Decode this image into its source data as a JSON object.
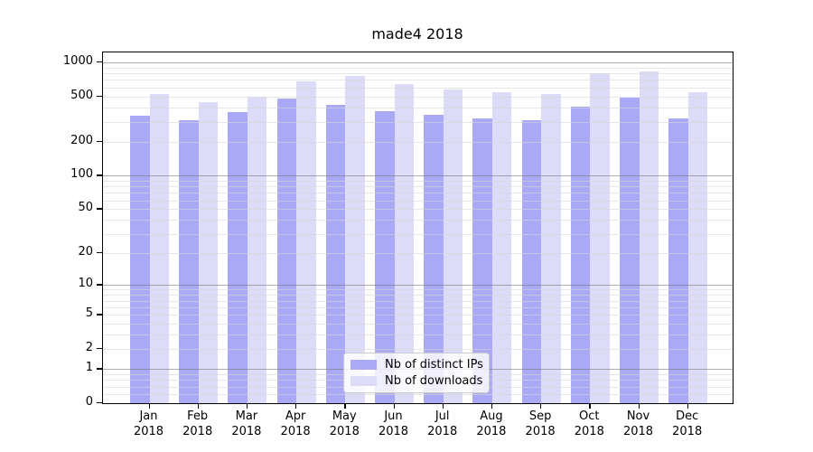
{
  "title": "made4 2018",
  "colors": {
    "distinct_ips": "#a9a9f5",
    "downloads": "#dcdcf8",
    "grid_major": "rgba(120,120,120,0.60)",
    "grid_minor": "rgba(215,215,215,0.60)",
    "axis": "#000000",
    "background": "#ffffff"
  },
  "legend": {
    "items": [
      {
        "label": "Nb of distinct IPs",
        "color_key": "distinct_ips"
      },
      {
        "label": "Nb of downloads",
        "color_key": "downloads"
      }
    ]
  },
  "chart_data": {
    "type": "bar",
    "title": "made4 2018",
    "categories": [
      "Jan 2018",
      "Feb 2018",
      "Mar 2018",
      "Apr 2018",
      "May 2018",
      "Jun 2018",
      "Jul 2018",
      "Aug 2018",
      "Sep 2018",
      "Oct 2018",
      "Nov 2018",
      "Dec 2018"
    ],
    "series": [
      {
        "name": "Nb of distinct IPs",
        "color_key": "distinct_ips",
        "values": [
          340,
          310,
          365,
          480,
          425,
          370,
          345,
          320,
          310,
          410,
          485,
          320
        ]
      },
      {
        "name": "Nb of downloads",
        "color_key": "downloads",
        "values": [
          525,
          445,
          500,
          685,
          765,
          645,
          575,
          545,
          525,
          805,
          840,
          545
        ]
      }
    ],
    "xlabel": "",
    "ylabel": "",
    "yscale": "log1p",
    "ylim": [
      0,
      1217
    ],
    "yticks": [
      0,
      1,
      2,
      5,
      10,
      20,
      50,
      100,
      200,
      500,
      1000
    ],
    "grid_major_values": [
      1,
      10,
      100,
      1000
    ],
    "grid_minor_values": [
      0.2,
      0.4,
      0.6,
      0.8,
      2,
      3,
      4,
      5,
      6,
      7,
      8,
      9,
      20,
      30,
      40,
      50,
      60,
      70,
      80,
      90,
      200,
      300,
      400,
      500,
      600,
      700,
      800,
      900
    ],
    "grid": true,
    "legend_position": "lower center"
  }
}
